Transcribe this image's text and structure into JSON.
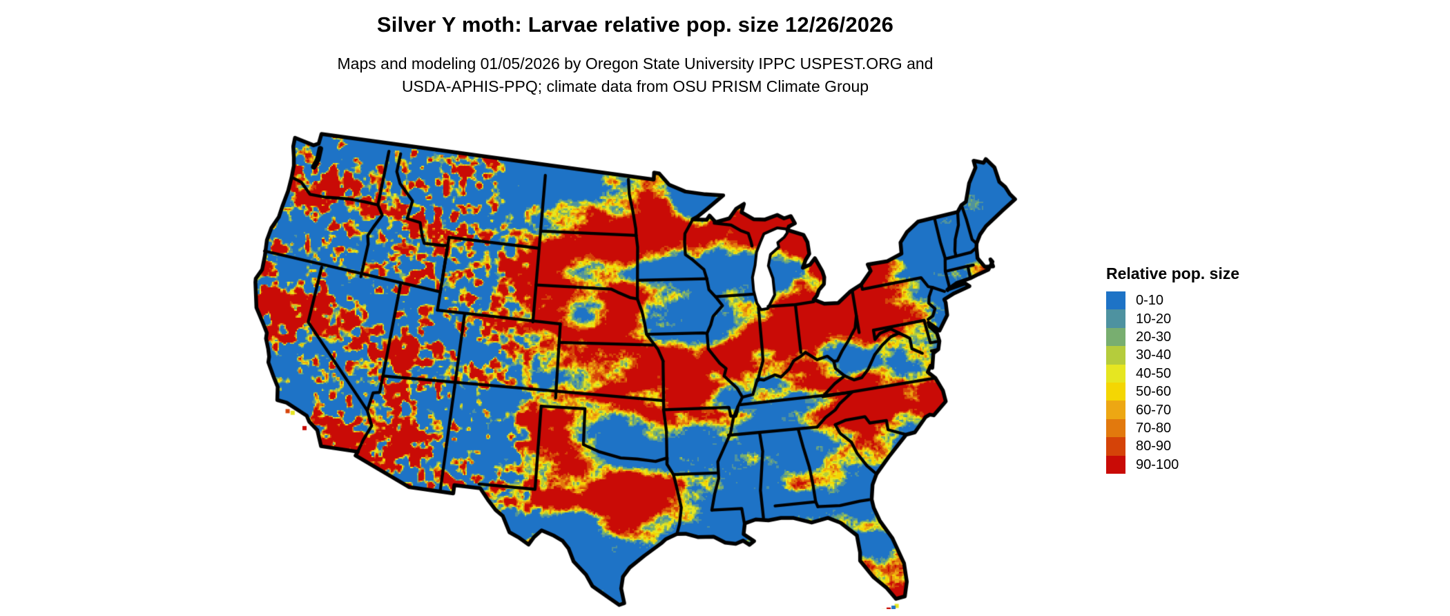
{
  "header": {
    "title": "Silver Y moth: Larvae relative pop. size 12/26/2026",
    "subtitle_line1": "Maps and modeling 01/05/2026 by Oregon State University IPPC USPEST.ORG and",
    "subtitle_line2": "USDA-APHIS-PPQ; climate data from OSU PRISM Climate Group"
  },
  "legend": {
    "title": "Relative pop. size",
    "items": [
      {
        "label": "0-10",
        "color": "#1e73c6"
      },
      {
        "label": "10-20",
        "color": "#4e92a0"
      },
      {
        "label": "20-30",
        "color": "#78ae70"
      },
      {
        "label": "30-40",
        "color": "#b5cc3c"
      },
      {
        "label": "40-50",
        "color": "#e6e621"
      },
      {
        "label": "50-60",
        "color": "#f4d603"
      },
      {
        "label": "60-70",
        "color": "#eda713"
      },
      {
        "label": "70-80",
        "color": "#e2790d"
      },
      {
        "label": "80-90",
        "color": "#d54308"
      },
      {
        "label": "90-100",
        "color": "#c90b06"
      }
    ]
  },
  "map": {
    "region_label": "Contiguous United States raster map",
    "border_color": "#000000",
    "water_color": "#ffffff"
  }
}
